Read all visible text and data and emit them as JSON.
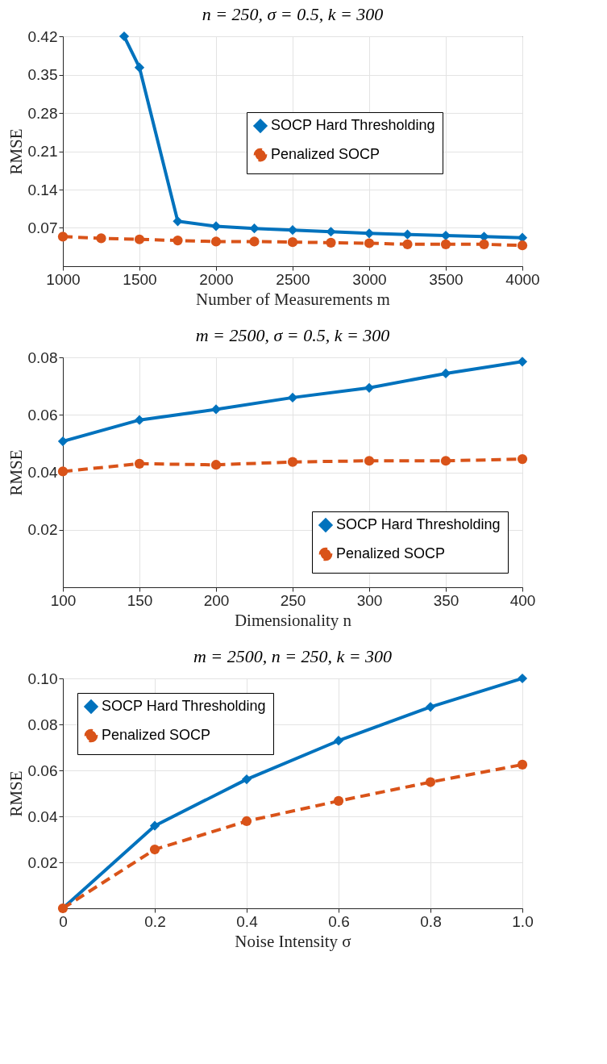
{
  "chart_data": [
    {
      "type": "line",
      "title": "n = 250,  σ = 0.5,  k = 300",
      "xlabel": "Number of Measurements m",
      "ylabel": "RMSE",
      "x": [
        1000,
        1250,
        1500,
        1750,
        2000,
        2250,
        2500,
        2750,
        3000,
        3250,
        3500,
        3750,
        4000
      ],
      "xlim": [
        1000,
        4000
      ],
      "xticks": [
        1000,
        1500,
        2000,
        2500,
        3000,
        3500,
        4000
      ],
      "ylim": [
        0,
        0.42
      ],
      "yticks": [
        0.07,
        0.14,
        0.21,
        0.28,
        0.35,
        0.42
      ],
      "grid": true,
      "legend": "right",
      "series": [
        {
          "name": "SOCP Hard Thresholding",
          "color": "#0072bd",
          "marker": "diamond",
          "line_style": "solid",
          "x": [
            1400,
            1500,
            1750,
            2000,
            2250,
            2500,
            2750,
            3000,
            3250,
            3500,
            3750,
            4000
          ],
          "values": [
            0.42,
            0.363,
            0.082,
            0.073,
            0.069,
            0.066,
            0.063,
            0.06,
            0.058,
            0.056,
            0.054,
            0.052
          ]
        },
        {
          "name": "Penalized SOCP",
          "color": "#d95319",
          "marker": "circle",
          "line_style": "dashed",
          "values": [
            0.054,
            0.051,
            0.049,
            0.047,
            0.045,
            0.045,
            0.044,
            0.043,
            0.042,
            0.04,
            0.04,
            0.04,
            0.038
          ]
        }
      ]
    },
    {
      "type": "line",
      "title": "m = 2500,  σ = 0.5,  k = 300",
      "xlabel": "Dimensionality n",
      "ylabel": "RMSE",
      "x": [
        100,
        150,
        200,
        250,
        300,
        350,
        400
      ],
      "xlim": [
        100,
        400
      ],
      "xticks": [
        100,
        150,
        200,
        250,
        300,
        350,
        400
      ],
      "ylim": [
        0,
        0.08
      ],
      "yticks": [
        0.02,
        0.04,
        0.06,
        0.08
      ],
      "grid": true,
      "legend": "bottom right",
      "series": [
        {
          "name": "SOCP Hard Thresholding",
          "color": "#0072bd",
          "marker": "diamond",
          "line_style": "solid",
          "values": [
            0.0508,
            0.0582,
            0.0619,
            0.066,
            0.0694,
            0.0744,
            0.0785
          ]
        },
        {
          "name": "Penalized SOCP",
          "color": "#d95319",
          "marker": "circle",
          "line_style": "dashed",
          "values": [
            0.0403,
            0.043,
            0.0426,
            0.0436,
            0.044,
            0.044,
            0.0446
          ]
        }
      ]
    },
    {
      "type": "line",
      "title": "m = 2500,  n = 250,  k = 300",
      "xlabel": "Noise Intensity σ",
      "ylabel": "RMSE",
      "x": [
        0,
        0.2,
        0.4,
        0.6,
        0.8,
        1
      ],
      "xlim": [
        0,
        1
      ],
      "xticks": [
        0,
        0.2,
        0.4,
        0.6,
        0.8,
        {
          "value": 1,
          "label": "1.0"
        }
      ],
      "ylim": [
        0,
        0.1
      ],
      "yticks": [
        0.02,
        0.04,
        0.06,
        0.08,
        {
          "value": 0.1,
          "label": "0.10"
        }
      ],
      "grid": true,
      "legend": "top left",
      "series": [
        {
          "name": "SOCP Hard Thresholding",
          "color": "#0072bd",
          "marker": "diamond",
          "line_style": "solid",
          "values": [
            0,
            0.0359,
            0.0561,
            0.0729,
            0.0876,
            0.1
          ]
        },
        {
          "name": "Penalized SOCP",
          "color": "#d95319",
          "marker": "circle",
          "line_style": "dashed",
          "values": [
            0,
            0.0256,
            0.0379,
            0.0467,
            0.0549,
            0.0625
          ]
        }
      ]
    }
  ]
}
